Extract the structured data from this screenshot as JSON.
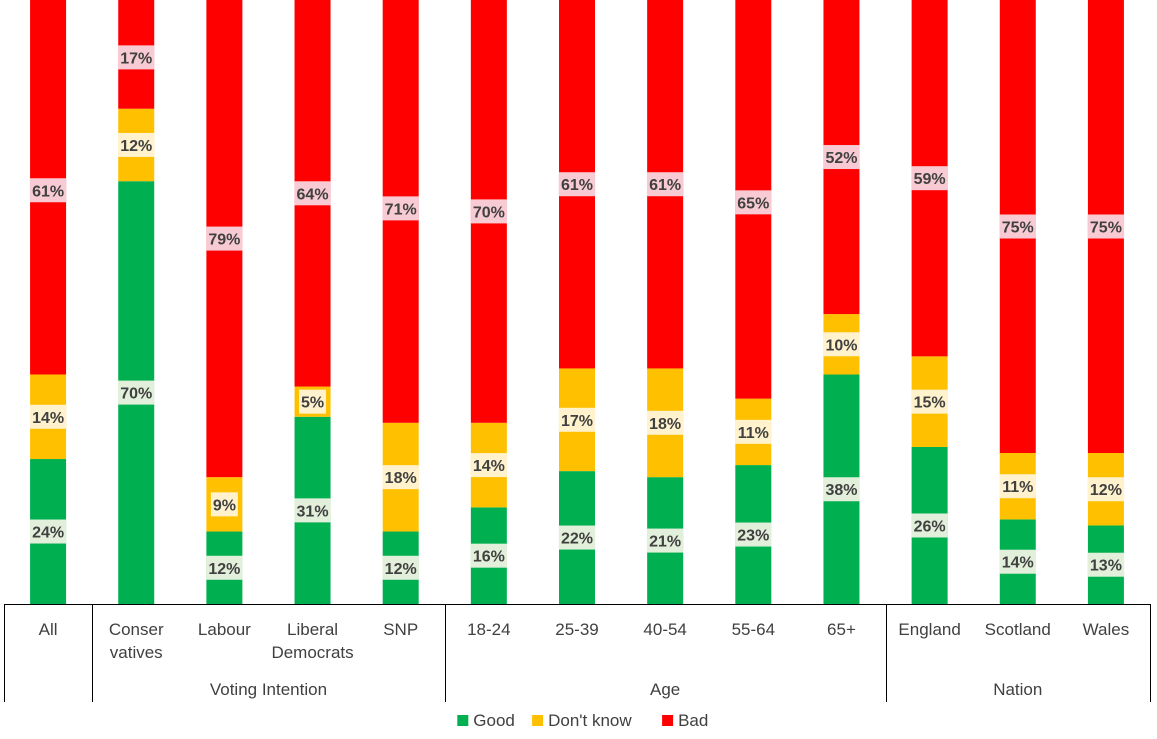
{
  "chart_data": {
    "type": "bar",
    "stacked": true,
    "unit": "%",
    "ylim": [
      0,
      100
    ],
    "grid": false,
    "legend_position": "bottom",
    "categories": [
      "All",
      "Conser vatives",
      "Labour",
      "Liberal Democrats",
      "SNP",
      "18-24",
      "25-39",
      "40-54",
      "55-64",
      "65+",
      "England",
      "Scotland",
      "Wales"
    ],
    "category_lines": [
      [
        "All"
      ],
      [
        "Conser",
        "vatives"
      ],
      [
        "Labour"
      ],
      [
        "Liberal",
        "Democrats"
      ],
      [
        "SNP"
      ],
      [
        "18-24"
      ],
      [
        "25-39"
      ],
      [
        "40-54"
      ],
      [
        "55-64"
      ],
      [
        "65+"
      ],
      [
        "England"
      ],
      [
        "Scotland"
      ],
      [
        "Wales"
      ]
    ],
    "groups": [
      {
        "label": "",
        "start": 0,
        "end": 0
      },
      {
        "label": "Voting Intention",
        "start": 1,
        "end": 4
      },
      {
        "label": "Age",
        "start": 5,
        "end": 9
      },
      {
        "label": "Nation",
        "start": 10,
        "end": 12
      }
    ],
    "series": [
      {
        "name": "Good",
        "color": "#00B050",
        "label_bg": "#E2EFDA",
        "values": [
          24,
          70,
          12,
          31,
          12,
          16,
          22,
          21,
          23,
          38,
          26,
          14,
          13
        ]
      },
      {
        "name": "Don't know",
        "color": "#FFC000",
        "label_bg": "#FFF2CC",
        "values": [
          14,
          12,
          9,
          5,
          18,
          14,
          17,
          18,
          11,
          10,
          15,
          11,
          12
        ]
      },
      {
        "name": "Bad",
        "color": "#FF0000",
        "label_bg": "#F8CBD4",
        "values": [
          61,
          17,
          79,
          64,
          71,
          70,
          61,
          61,
          65,
          52,
          59,
          75,
          75
        ]
      }
    ]
  }
}
